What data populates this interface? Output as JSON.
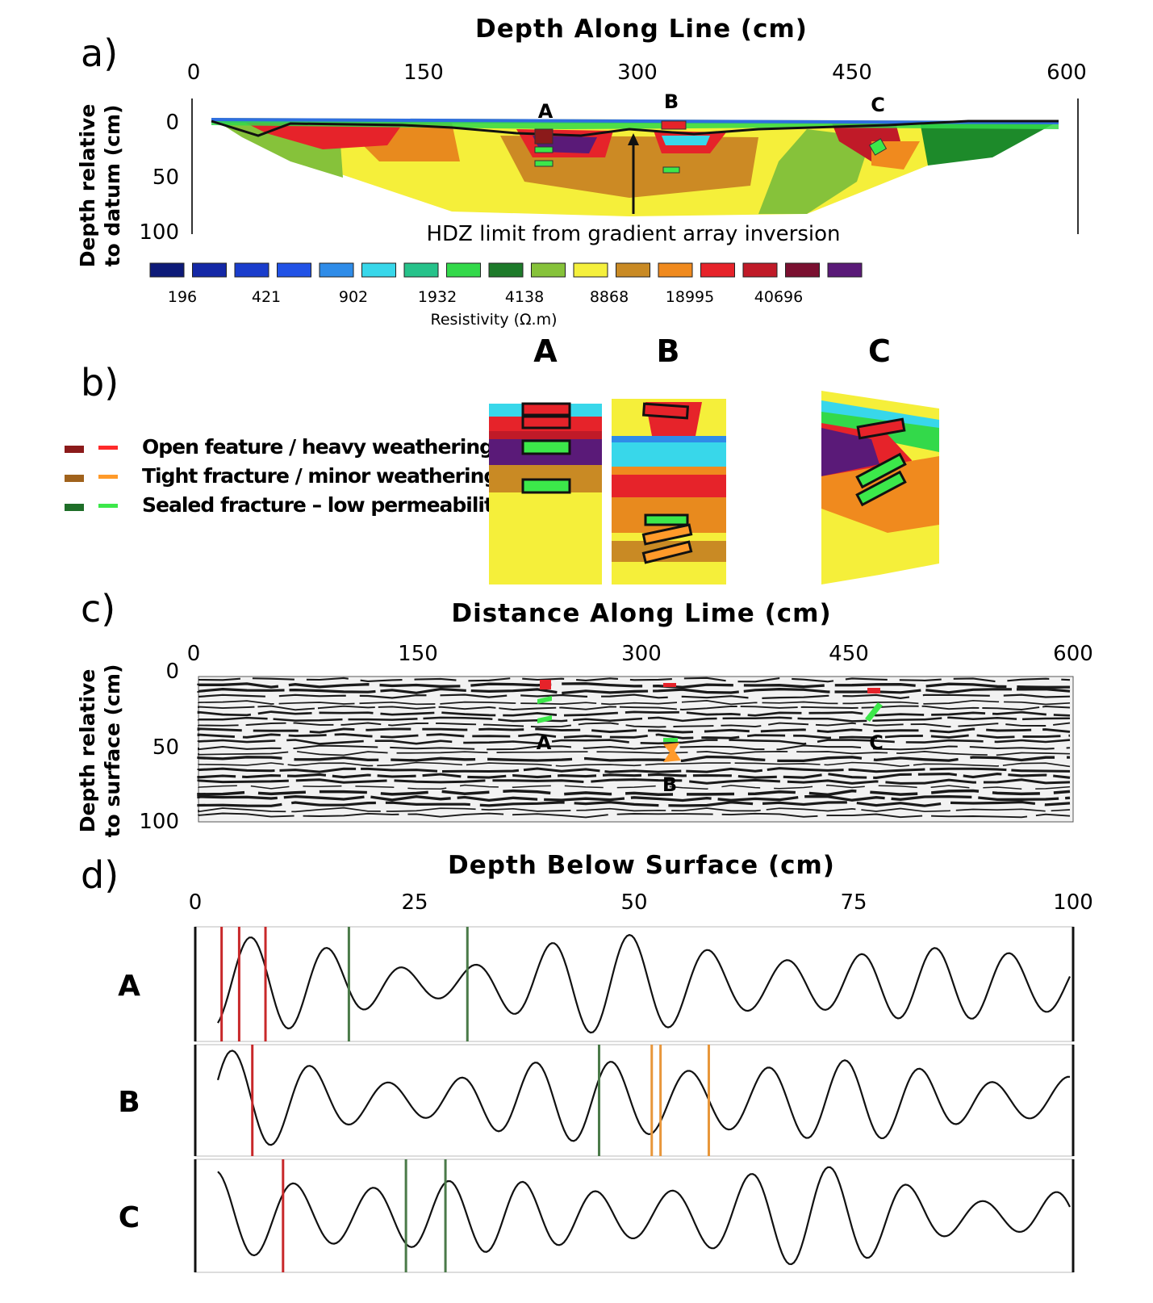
{
  "panels": {
    "a": {
      "letter": "a)",
      "title": "Depth Along Line (cm)",
      "x_ticks": [
        "0",
        "150",
        "300",
        "450",
        "600"
      ],
      "y_label_line1": "Depth relative",
      "y_label_line2": "to datum (cm)",
      "y_ticks": [
        "0",
        "50",
        "100"
      ],
      "site_labels": [
        "A",
        "B",
        "C"
      ],
      "annotation": "HDZ limit from gradient array inversion",
      "colorbar": {
        "colors": [
          "#0d1a78",
          "#1428a6",
          "#1a3dcc",
          "#2152e6",
          "#2f8ce8",
          "#38d7ea",
          "#26c28a",
          "#33d94a",
          "#1d7a2a",
          "#86c23a",
          "#f5f03c",
          "#c98a24",
          "#f08a1e",
          "#e6232a",
          "#c01a28",
          "#7a1030",
          "#5a1a78"
        ],
        "labels": [
          "196",
          "421",
          "902",
          "1932",
          "4138",
          "8868",
          "18995",
          "40696"
        ],
        "unit_label": "Resistivity (Ω.m)"
      }
    },
    "b": {
      "letter": "b)",
      "legend": [
        {
          "label": "Open feature / heavy weathering",
          "dark": "#8b1a1a",
          "light": "#ff2a2a"
        },
        {
          "label": "Tight fracture / minor weathering",
          "dark": "#a0621c",
          "light": "#ff9a2a"
        },
        {
          "label": "Sealed fracture – low permeability",
          "dark": "#1e6e28",
          "light": "#3ce84a"
        }
      ],
      "inset_labels": [
        "A",
        "B",
        "C"
      ]
    },
    "c": {
      "letter": "c)",
      "title": "Distance Along Lime (cm)",
      "x_ticks": [
        "0",
        "150",
        "300",
        "450",
        "600"
      ],
      "y_label_line1": "Depth relative",
      "y_label_line2": "to surface (cm)",
      "y_ticks": [
        "0",
        "50",
        "100"
      ],
      "site_labels": [
        "A",
        "B",
        "C"
      ]
    },
    "d": {
      "letter": "d)",
      "title": "Depth Below Surface (cm)",
      "x_ticks": [
        "0",
        "25",
        "50",
        "75",
        "100"
      ],
      "xlim": [
        0,
        100
      ],
      "traces": [
        {
          "name": "A",
          "markers": [
            {
              "depth": 3,
              "type": "open"
            },
            {
              "depth": 5,
              "type": "open"
            },
            {
              "depth": 8,
              "type": "open"
            },
            {
              "depth": 17.5,
              "type": "sealed"
            },
            {
              "depth": 31,
              "type": "sealed"
            }
          ]
        },
        {
          "name": "B",
          "markers": [
            {
              "depth": 6.5,
              "type": "open"
            },
            {
              "depth": 46,
              "type": "sealed"
            },
            {
              "depth": 52,
              "type": "tight"
            },
            {
              "depth": 53,
              "type": "tight"
            },
            {
              "depth": 58.5,
              "type": "tight"
            }
          ]
        },
        {
          "name": "C",
          "markers": [
            {
              "depth": 10,
              "type": "open"
            },
            {
              "depth": 24,
              "type": "sealed"
            },
            {
              "depth": 28.5,
              "type": "sealed"
            }
          ]
        }
      ],
      "marker_colors": {
        "open": "#c8282a",
        "tight": "#e8963a",
        "sealed": "#4a7a48"
      }
    }
  }
}
